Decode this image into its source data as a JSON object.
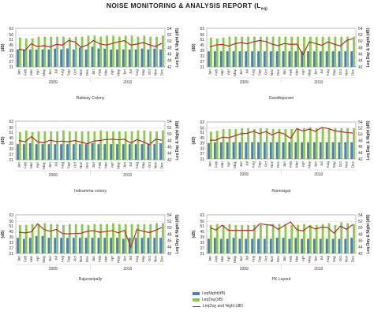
{
  "page": {
    "title": "NOISE MONITORING & ANALYSIS REPORT (L",
    "title_sub": "eq)"
  },
  "legend": {
    "night": "LeqNight(dB)",
    "day": "LeqDay(dB)",
    "dn": "LeqDay and Night (dB)"
  },
  "colors": {
    "night": "#4a7ebb",
    "day": "#8fc751",
    "dn": "#b22d2d",
    "grid": "#d8d8d8"
  },
  "chart_data": [
    {
      "type": "bar",
      "title": "Railway Colony",
      "ylabel": "(dB)",
      "y2label": "Leq Day & Night (dB)",
      "ylim": [
        21,
        63
      ],
      "y_ticks": [
        21,
        27,
        33,
        39,
        45,
        51,
        56,
        63
      ],
      "y2lim": [
        42,
        54
      ],
      "y2_ticks": [
        42,
        44,
        46,
        48,
        50,
        52,
        54
      ],
      "categories": [
        "Jan",
        "Feb",
        "Mar",
        "Apr",
        "May",
        "Jun",
        "Jul",
        "Aug",
        "Sep",
        "Oct",
        "Nov",
        "Dec",
        "Jan",
        "Feb",
        "Mar",
        "Apr",
        "May",
        "Jun",
        "Jul",
        "Aug",
        "Sep",
        "Oct",
        "Nov",
        "Dec"
      ],
      "years": [
        "2009",
        "2010"
      ],
      "series": [
        {
          "name": "LeqNight(dB)",
          "values": [
            40,
            40,
            40,
            40,
            40,
            40,
            41,
            40,
            41,
            40,
            42,
            40,
            43,
            41,
            41,
            40,
            40,
            40,
            40,
            40,
            41,
            40,
            41,
            40
          ]
        },
        {
          "name": "LeqDay(dB)",
          "values": [
            53,
            52,
            52,
            54,
            54,
            54,
            54,
            54,
            53,
            54,
            54,
            55,
            55,
            54,
            55,
            55,
            54,
            55,
            55,
            54,
            55,
            54,
            54,
            55
          ]
        },
        {
          "name": "LeqDay and Night (dB)",
          "values": [
            47.5,
            47.2,
            49.2,
            48.3,
            48.6,
            48.2,
            49.0,
            48.8,
            50.2,
            49.8,
            48.1,
            48.8,
            50.2,
            49.2,
            48.8,
            49.3,
            49.8,
            50.2,
            48.8,
            49.1,
            49.6,
            48.9,
            48.3,
            49.4
          ]
        }
      ]
    },
    {
      "type": "bar",
      "title": "Gandhipuram",
      "ylabel": "(dB)",
      "y2label": "Leq Day & Night (dB)",
      "ylim": [
        21,
        63
      ],
      "y_ticks": [
        21,
        27,
        33,
        39,
        45,
        51,
        56,
        63
      ],
      "y2lim": [
        42,
        54
      ],
      "y2_ticks": [
        42,
        44,
        46,
        48,
        50,
        52,
        54
      ],
      "categories": [
        "Jan",
        "Feb",
        "Mar",
        "Apr",
        "May",
        "Jun",
        "Jul",
        "Aug",
        "Sep",
        "Oct",
        "Nov",
        "Dec",
        "Jan",
        "Feb",
        "Mar",
        "Apr",
        "May",
        "Jun",
        "Jul",
        "Aug",
        "Sep",
        "Oct",
        "Nov",
        "Dec"
      ],
      "years": [
        "2009",
        "2010"
      ],
      "series": [
        {
          "name": "LeqNight(dB)",
          "values": [
            38,
            38,
            38,
            38,
            38,
            38,
            38,
            38,
            38,
            38,
            38,
            38,
            38,
            38,
            38,
            38,
            38,
            38,
            38,
            38,
            38,
            38,
            38,
            38
          ]
        },
        {
          "name": "LeqDay(dB)",
          "values": [
            53,
            52,
            53,
            54,
            54,
            54,
            54,
            54,
            54,
            54,
            54,
            54,
            54,
            54,
            54,
            54,
            54,
            54,
            54,
            54,
            54,
            54,
            54,
            54
          ]
        },
        {
          "name": "LeqDay and Night (dB)",
          "values": [
            48.2,
            48.8,
            49.0,
            48.5,
            49.2,
            49.6,
            49.2,
            49.8,
            50.2,
            49.9,
            49.1,
            48.6,
            49.3,
            49.0,
            49.1,
            45.8,
            49.8,
            49.3,
            48.7,
            49.8,
            49.1,
            48.5,
            50.2,
            50.8
          ]
        }
      ]
    },
    {
      "type": "bar",
      "title": "Indiramma colony",
      "ylabel": "(dB)",
      "y2label": "Leq Day & Night (dB)",
      "ylim": [
        21,
        63
      ],
      "y_ticks": [
        21,
        27,
        33,
        39,
        45,
        51,
        56,
        63
      ],
      "y2lim": [
        42,
        54
      ],
      "y2_ticks": [
        42,
        44,
        46,
        48,
        50,
        52,
        54
      ],
      "categories": [
        "Jan",
        "Feb",
        "Mar",
        "Apr",
        "May",
        "Jun",
        "Jul",
        "Aug",
        "Sep",
        "Oct",
        "Nov",
        "Dec",
        "Jan",
        "Feb",
        "Mar",
        "Apr",
        "May",
        "Jun",
        "Jul",
        "Aug",
        "Sep",
        "Oct",
        "Nov",
        "Dec"
      ],
      "years": [
        "2009",
        "2010"
      ],
      "series": [
        {
          "name": "LeqNight(dB)",
          "values": [
            38,
            38,
            39,
            38,
            38,
            38,
            38,
            38,
            38,
            38,
            38,
            38,
            39,
            38,
            38,
            38,
            38,
            38,
            38,
            38,
            38,
            38,
            38,
            39
          ]
        },
        {
          "name": "LeqDay(dB)",
          "values": [
            51,
            53,
            51,
            52,
            52,
            52,
            52,
            53,
            52,
            52,
            52,
            52,
            52,
            53,
            52,
            52,
            52,
            52,
            52,
            53,
            53,
            52,
            52,
            53
          ]
        },
        {
          "name": "LeqDay and Night (dB)",
          "values": [
            48.0,
            47.6,
            49.2,
            47.6,
            47.3,
            48.1,
            47.7,
            47.8,
            47.6,
            48.0,
            47.5,
            47.0,
            47.8,
            48.0,
            48.3,
            48.4,
            48.2,
            48.4,
            47.2,
            48.3,
            47.6,
            46.7,
            48.4,
            48.1
          ]
        }
      ]
    },
    {
      "type": "bar",
      "title": "Ramnagar",
      "ylabel": "(dB)",
      "y2label": "Leq Day & Night (dB)",
      "ylim": [
        21,
        63
      ],
      "y_ticks": [
        21,
        27,
        33,
        39,
        45,
        51,
        56,
        63
      ],
      "y2lim": [
        42,
        54
      ],
      "y2_ticks": [
        42,
        44,
        46,
        48,
        50,
        52,
        54
      ],
      "categories": [
        "Jan",
        "Feb",
        "Mar",
        "Apr",
        "May",
        "Jun",
        "Jul",
        "Aug",
        "Sep",
        "Oct",
        "Nov",
        "Dec",
        "Jan",
        "Feb",
        "Mar",
        "Apr",
        "May",
        "Jun",
        "Jul",
        "Aug",
        "Sep",
        "Oct",
        "Nov",
        "Dec"
      ],
      "years": [
        "2009",
        "2010"
      ],
      "series": [
        {
          "name": "LeqNight(dB)",
          "values": [
            39,
            40,
            40,
            40,
            40,
            40,
            40,
            40,
            40,
            40,
            40,
            40,
            40,
            40,
            40,
            40,
            40,
            40,
            40,
            40,
            40,
            40,
            40,
            40
          ]
        },
        {
          "name": "LeqDay(dB)",
          "values": [
            52,
            53,
            55,
            55,
            55,
            56,
            56,
            55,
            56,
            56,
            55,
            55,
            55,
            55,
            56,
            56,
            57,
            56,
            56,
            56,
            56,
            56,
            56,
            56
          ]
        },
        {
          "name": "LeqDay and Night (dB)",
          "values": [
            48.1,
            48.1,
            49.1,
            48.9,
            49.5,
            50.2,
            50.3,
            51.0,
            50.2,
            50.9,
            49.8,
            50.7,
            50.1,
            48.7,
            51.8,
            51.1,
            51.7,
            51.0,
            52.2,
            51.9,
            51.2,
            50.9,
            50.6,
            50.4
          ]
        }
      ]
    },
    {
      "type": "bar",
      "title": "Rajuvaripally",
      "ylabel": "(dB)",
      "y2label": "Leq Day & Night (dB)",
      "ylim": [
        21,
        63
      ],
      "y_ticks": [
        21,
        27,
        33,
        39,
        45,
        51,
        56,
        63
      ],
      "y2lim": [
        42,
        54
      ],
      "y2_ticks": [
        42,
        44,
        46,
        48,
        50,
        52,
        54
      ],
      "categories": [
        "Jan",
        "Feb",
        "Mar",
        "Apr",
        "May",
        "Jun",
        "Jul",
        "Aug",
        "Sep",
        "Oct",
        "Nov",
        "Dec",
        "Jan",
        "Feb",
        "Mar",
        "Apr",
        "May",
        "Jun",
        "Jul",
        "Aug",
        "Sep",
        "Oct",
        "Nov",
        "Dec"
      ],
      "years": [
        "2009",
        "2010"
      ],
      "series": [
        {
          "name": "LeqNight(dB)",
          "values": [
            38,
            37,
            38,
            40,
            40,
            38,
            38,
            38,
            38,
            38,
            38,
            38,
            38,
            38,
            38,
            38,
            38,
            37,
            38,
            38,
            38,
            38,
            38,
            38
          ]
        },
        {
          "name": "LeqDay(dB)",
          "values": [
            52,
            52,
            53,
            53,
            54,
            53,
            53,
            52,
            53,
            53,
            53,
            52,
            53,
            53,
            53,
            54,
            53,
            53,
            53,
            53,
            53,
            53,
            54,
            54
          ]
        },
        {
          "name": "LeqDay and Night (dB)",
          "values": [
            48.6,
            48.4,
            48.7,
            51.2,
            49.5,
            48.9,
            49.5,
            48.2,
            48.1,
            48.2,
            48.3,
            48.9,
            49.1,
            48.6,
            48.8,
            49.1,
            48.4,
            49.2,
            43.9,
            49.5,
            48.9,
            48.5,
            49.2,
            50.1
          ]
        }
      ]
    },
    {
      "type": "bar",
      "title": "PK Layout",
      "ylabel": "(dB)",
      "y2label": "Leq Day & Night (dB)",
      "ylim": [
        21,
        63
      ],
      "y_ticks": [
        21,
        27,
        33,
        39,
        45,
        51,
        56,
        63
      ],
      "y2lim": [
        42,
        54
      ],
      "y2_ticks": [
        42,
        44,
        46,
        48,
        50,
        52,
        54
      ],
      "categories": [
        "Jan",
        "Feb",
        "Mar",
        "Apr",
        "May",
        "Jun",
        "Jul",
        "Aug",
        "Sep",
        "Oct",
        "Nov",
        "Dec",
        "Jan",
        "Feb",
        "Mar",
        "Apr",
        "May",
        "Jun",
        "Jul",
        "Aug",
        "Sep",
        "Oct",
        "Nov",
        "Dec"
      ],
      "years": [
        "2009",
        "2010"
      ],
      "series": [
        {
          "name": "LeqNight(dB)",
          "values": [
            37,
            38,
            37,
            37,
            38,
            37,
            37,
            37,
            37,
            37,
            37,
            38,
            38,
            37,
            38,
            37,
            37,
            37,
            37,
            37,
            37,
            37,
            37,
            38
          ]
        },
        {
          "name": "LeqDay(dB)",
          "values": [
            52,
            53,
            52,
            53,
            52,
            52,
            52,
            52,
            52,
            53,
            53,
            53,
            53,
            52,
            52,
            53,
            52,
            52,
            53,
            54,
            52,
            55,
            54,
            53
          ]
        },
        {
          "name": "LeqDay and Night (dB)",
          "values": [
            50.0,
            49.3,
            50.8,
            49.2,
            49.2,
            49.2,
            49.2,
            49.2,
            51.2,
            51.0,
            50.8,
            49.5,
            50.7,
            51.8,
            49.4,
            49.0,
            50.5,
            49.6,
            50.2,
            50.0,
            48.3,
            50.5,
            49.5,
            51.0
          ]
        }
      ]
    }
  ]
}
